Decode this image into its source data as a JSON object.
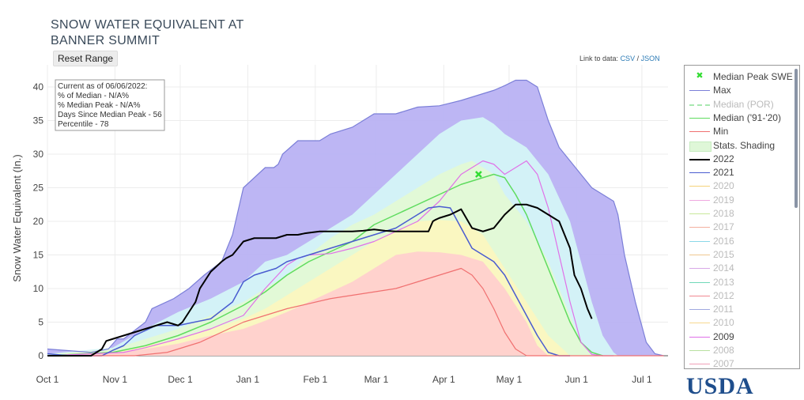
{
  "page": {
    "title_line1": "SNOW WATER EQUIVALENT AT",
    "title_line2": "BANNER SUMMIT",
    "reset_label": "Reset Range",
    "link_prefix": "Link to data:",
    "link_csv": "CSV",
    "link_sep": "/",
    "link_json": "JSON",
    "logo_text": "USDA"
  },
  "info_box": {
    "lines": [
      "Current as of 06/06/2022:",
      "% of Median - N/A%",
      "% Median Peak - N/A%",
      "Days Since Median Peak - 56",
      "Percentile - 78"
    ]
  },
  "legend": [
    {
      "label": "Median Peak SWE",
      "color": "#33dd33",
      "kind": "marker",
      "enabled": true
    },
    {
      "label": "Max",
      "color": "#7b7fd8",
      "kind": "line",
      "enabled": true
    },
    {
      "label": "Median (POR)",
      "color": "#a8e8b0",
      "kind": "dash",
      "enabled": false
    },
    {
      "label": "Median ('91-'20)",
      "color": "#5fdc5f",
      "kind": "line",
      "enabled": true
    },
    {
      "label": "Min",
      "color": "#f07070",
      "kind": "line",
      "enabled": true
    },
    {
      "label": "Stats. Shading",
      "color": "#dff7d8",
      "kind": "fill",
      "enabled": true
    },
    {
      "label": "2022",
      "color": "#000000",
      "kind": "bold",
      "enabled": true
    },
    {
      "label": "2021",
      "color": "#4a5cd0",
      "kind": "line",
      "enabled": true
    },
    {
      "label": "2020",
      "color": "#f5d27a",
      "kind": "line",
      "enabled": false
    },
    {
      "label": "2019",
      "color": "#f0a8e0",
      "kind": "line",
      "enabled": false
    },
    {
      "label": "2018",
      "color": "#c8e89a",
      "kind": "line",
      "enabled": false
    },
    {
      "label": "2017",
      "color": "#f4b0a0",
      "kind": "line",
      "enabled": false
    },
    {
      "label": "2016",
      "color": "#8ad8e8",
      "kind": "line",
      "enabled": false
    },
    {
      "label": "2015",
      "color": "#f0c890",
      "kind": "line",
      "enabled": false
    },
    {
      "label": "2014",
      "color": "#d8a8e8",
      "kind": "line",
      "enabled": false
    },
    {
      "label": "2013",
      "color": "#70d8b8",
      "kind": "line",
      "enabled": false
    },
    {
      "label": "2012",
      "color": "#f08890",
      "kind": "line",
      "enabled": false
    },
    {
      "label": "2011",
      "color": "#a0a8e0",
      "kind": "line",
      "enabled": false
    },
    {
      "label": "2010",
      "color": "#f8d890",
      "kind": "line",
      "enabled": false
    },
    {
      "label": "2009",
      "color": "#e070e8",
      "kind": "line",
      "enabled": true
    },
    {
      "label": "2008",
      "color": "#b8e0a0",
      "kind": "line",
      "enabled": false
    },
    {
      "label": "2007",
      "color": "#f0a0b8",
      "kind": "line",
      "enabled": false
    }
  ],
  "chart_data": {
    "type": "area",
    "title": "SNOW WATER EQUIVALENT AT BANNER SUMMIT",
    "ylabel": "Snow Water Equivalent (In.)",
    "xlabel": "",
    "ylim": [
      0,
      43
    ],
    "yticks": [
      0,
      5,
      10,
      15,
      20,
      25,
      30,
      35,
      40
    ],
    "x_ticks": [
      "Oct 1",
      "Nov 1",
      "Dec 1",
      "Jan 1",
      "Feb 1",
      "Mar 1",
      "Apr 1",
      "May 1",
      "Jun 1",
      "Jul 1"
    ],
    "grid": true,
    "legend_position": "right",
    "x_unit": "days since Oct 1",
    "bands": [
      {
        "name": "max_band",
        "color": "#b9b2f3",
        "x": [
          0,
          20,
          28,
          32,
          35,
          45,
          48,
          58,
          65,
          72,
          80,
          85,
          90,
          100,
          104,
          106,
          108,
          115,
          125,
          130,
          140,
          150,
          160,
          170,
          180,
          190,
          195,
          200,
          205,
          210,
          215,
          220,
          225,
          230,
          235,
          240,
          245,
          250,
          255,
          260,
          262,
          265,
          270,
          275,
          279,
          283
        ],
        "upper": [
          1,
          0.5,
          1,
          2.5,
          2.5,
          5,
          7,
          8.5,
          10,
          12,
          14,
          18,
          25,
          28,
          28,
          28.5,
          30,
          32,
          32,
          33,
          34,
          36,
          36,
          37,
          37.2,
          38,
          38.5,
          39,
          39.5,
          40.2,
          41,
          41,
          40,
          35,
          31,
          29,
          27,
          25,
          24,
          23,
          21,
          15,
          8,
          2,
          0.3,
          0
        ]
      },
      {
        "name": "p90_band",
        "color": "#d4f5f7",
        "x": [
          0,
          30,
          45,
          60,
          75,
          90,
          100,
          110,
          120,
          130,
          140,
          150,
          160,
          170,
          180,
          190,
          200,
          205,
          210,
          220,
          230,
          240,
          245,
          250,
          255,
          260,
          262
        ],
        "upper": [
          0.3,
          1.2,
          4,
          6.5,
          8.5,
          11,
          14,
          15,
          17,
          19,
          21,
          24,
          27,
          30,
          33,
          35,
          35.5,
          34.5,
          33,
          31,
          27,
          20,
          14,
          8,
          3,
          0.5,
          0
        ]
      },
      {
        "name": "p70_band",
        "color": "#e3f9d5",
        "x": [
          0,
          30,
          45,
          60,
          75,
          90,
          100,
          110,
          120,
          130,
          140,
          150,
          160,
          170,
          180,
          190,
          195,
          200,
          205,
          210,
          220,
          230,
          240,
          245,
          250
        ],
        "upper": [
          0.2,
          1,
          2.5,
          4,
          6,
          8,
          10,
          12,
          15,
          17.5,
          19.5,
          21,
          23,
          25,
          27,
          28.5,
          29,
          28,
          27,
          24,
          20,
          14,
          6,
          2,
          0
        ]
      },
      {
        "name": "p50_band",
        "color": "#fbf7c0",
        "x": [
          0,
          30,
          45,
          60,
          75,
          90,
          100,
          110,
          120,
          130,
          140,
          150,
          160,
          170,
          180,
          190,
          200,
          210,
          220,
          230,
          240
        ],
        "upper": [
          0.1,
          0.6,
          1.5,
          2.5,
          4,
          5.5,
          7,
          9,
          11,
          13,
          15,
          17,
          18.5,
          20,
          20.2,
          20,
          18,
          13,
          8,
          3,
          0
        ]
      },
      {
        "name": "p30_band",
        "color": "#ffd0cd",
        "x": [
          0,
          30,
          45,
          60,
          75,
          90,
          100,
          110,
          120,
          130,
          140,
          150,
          160,
          170,
          180,
          190,
          200,
          210,
          220,
          225,
          230
        ],
        "upper": [
          0.1,
          0.4,
          1,
          1.8,
          3,
          4,
          5.2,
          6.5,
          8,
          9.5,
          11,
          13,
          15,
          15.5,
          15.4,
          15,
          14,
          10,
          5,
          1.5,
          0
        ]
      }
    ],
    "series": [
      {
        "name": "Median ('91-'20)",
        "color": "#5fdc5f",
        "width": 1.5,
        "x": [
          0,
          30,
          45,
          60,
          75,
          90,
          100,
          110,
          120,
          130,
          140,
          150,
          160,
          170,
          180,
          190,
          195,
          200,
          205,
          210,
          215,
          220,
          225,
          230,
          235,
          240,
          245,
          250,
          255
        ],
        "y": [
          0,
          0.5,
          1.5,
          3,
          5,
          7.5,
          9.5,
          12,
          14,
          15.5,
          17,
          19.5,
          21,
          22.5,
          24,
          25.5,
          26,
          26.5,
          27,
          26.5,
          24,
          21,
          17,
          13,
          9,
          5,
          2,
          0.5,
          0
        ]
      },
      {
        "name": "2009",
        "color": "#e070e8",
        "width": 1.2,
        "x": [
          0,
          35,
          45,
          60,
          75,
          90,
          100,
          110,
          115,
          120,
          130,
          140,
          150,
          160,
          170,
          180,
          190,
          195,
          200,
          205,
          210,
          215,
          220,
          225,
          230,
          235,
          240,
          245,
          250,
          255,
          260
        ],
        "y": [
          0,
          0.5,
          1.2,
          2.5,
          4,
          6,
          10,
          13.5,
          14.5,
          15,
          15.2,
          16,
          17,
          18.5,
          20,
          23,
          27,
          28,
          29,
          28.5,
          27,
          28,
          29,
          27,
          22,
          15,
          8,
          2,
          0.2,
          0,
          0
        ]
      },
      {
        "name": "2021",
        "color": "#4a5cd0",
        "width": 1.5,
        "x": [
          0,
          10,
          25,
          30,
          35,
          40,
          50,
          60,
          75,
          85,
          90,
          95,
          100,
          105,
          110,
          120,
          130,
          140,
          150,
          160,
          165,
          170,
          175,
          180,
          185,
          190,
          195,
          200,
          205,
          210,
          215,
          220,
          225,
          230,
          235,
          240
        ],
        "y": [
          0.3,
          0,
          0,
          0.8,
          1.5,
          3,
          4.5,
          4.5,
          5.5,
          8,
          11,
          12,
          12.5,
          13,
          14,
          15,
          16,
          17,
          18,
          19,
          20,
          21,
          22,
          22.2,
          22,
          19,
          16,
          15,
          14,
          12,
          9,
          6,
          3,
          0.5,
          0,
          0
        ]
      },
      {
        "name": "Min",
        "color": "#f07070",
        "width": 1.2,
        "x": [
          0,
          40,
          55,
          70,
          80,
          90,
          100,
          110,
          130,
          150,
          160,
          170,
          180,
          185,
          190,
          195,
          200,
          205,
          210,
          215,
          220,
          225,
          230,
          235,
          240,
          260,
          283
        ],
        "y": [
          0,
          0,
          0.5,
          2,
          3.5,
          5,
          6,
          7,
          8.5,
          9.5,
          10,
          11,
          12,
          12.5,
          13,
          12,
          10,
          7,
          3.5,
          1,
          0,
          0,
          0,
          0,
          0,
          0,
          0
        ]
      },
      {
        "name": "2022",
        "color": "#000000",
        "width": 2.0,
        "x": [
          0,
          20,
          25,
          27,
          30,
          35,
          40,
          45,
          50,
          55,
          60,
          62,
          65,
          68,
          70,
          75,
          80,
          82,
          85,
          90,
          95,
          100,
          105,
          110,
          115,
          118,
          120,
          125,
          130,
          135,
          140,
          145,
          150,
          155,
          160,
          165,
          170,
          175,
          177,
          178,
          180,
          185,
          190,
          195,
          200,
          205,
          210,
          215,
          220,
          225,
          230,
          235,
          240,
          242,
          245,
          248,
          250
        ],
        "y": [
          0,
          0,
          1,
          2.2,
          2.5,
          3,
          3.5,
          4,
          4.5,
          5,
          4.5,
          5,
          6.5,
          8,
          10,
          12.5,
          14,
          14.5,
          15,
          17,
          17.5,
          17.5,
          17.5,
          18,
          18,
          18.2,
          18.3,
          18.5,
          18.5,
          18.5,
          18.5,
          18.6,
          18.8,
          18.6,
          18.5,
          18.5,
          18.5,
          18.5,
          20,
          20.2,
          20.5,
          21,
          21.8,
          19,
          18.5,
          19,
          21,
          22.5,
          22.5,
          22,
          21,
          20,
          16,
          12,
          10,
          7,
          5.5
        ]
      }
    ],
    "markers": [
      {
        "name": "Median Peak SWE",
        "x": 198,
        "y": 27,
        "color": "#33dd33",
        "symbol": "x"
      }
    ],
    "date_ticks": [
      0,
      31,
      61,
      92,
      123,
      151,
      182,
      212,
      243,
      273
    ],
    "x_max": 285
  }
}
